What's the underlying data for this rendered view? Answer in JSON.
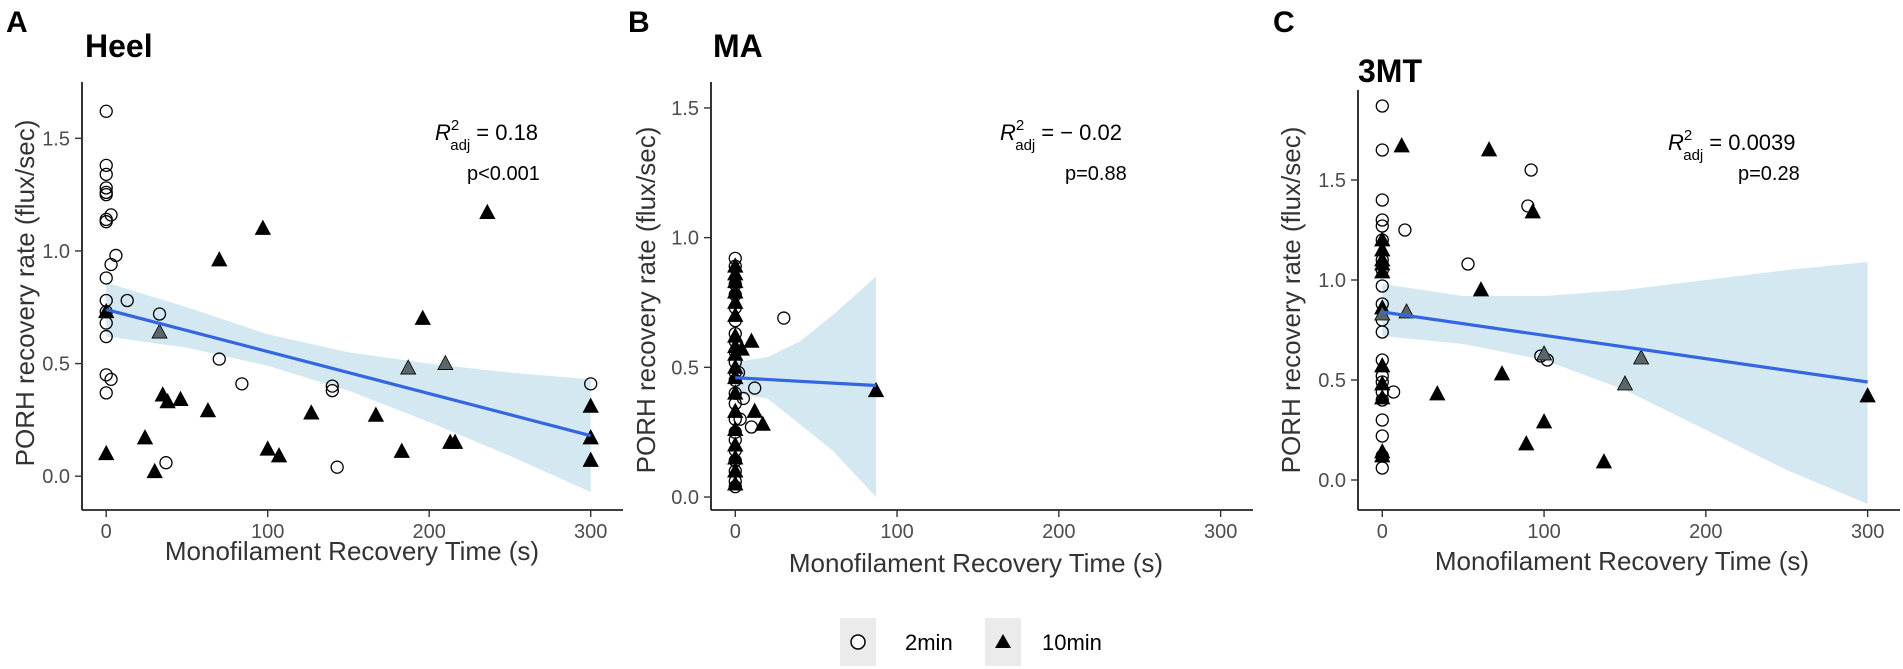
{
  "legend": {
    "items": [
      {
        "label": "2min",
        "marker": "circle"
      },
      {
        "label": "10min",
        "marker": "triangle"
      }
    ]
  },
  "colors": {
    "fit_line": "#3366e0",
    "ci_band": "#cfe6f0",
    "marker_edge": "#000000",
    "gray_triangle": "#5a6668",
    "legend_bg": "#ebebeb"
  },
  "chart_data": [
    {
      "panel": "A",
      "title": "Heel",
      "type": "scatter",
      "xlabel": "Monofilament Recovery Time (s)",
      "ylabel": "PORH recovery rate (flux/sec)",
      "xlim": [
        -15,
        320
      ],
      "ylim": [
        -0.15,
        1.75
      ],
      "xticks": [
        0,
        100,
        200,
        300
      ],
      "yticks": [
        0.0,
        0.5,
        1.0,
        1.5
      ],
      "ytick_labels": [
        "0.0",
        "0.5",
        "1.0",
        "1.5"
      ],
      "r2_prefix": "R",
      "r2_sup": "2",
      "r2_sub": "adj",
      "r2_value": "= 0.18",
      "p_text": "p<0.001",
      "fit": {
        "x0": 0,
        "y0": 0.74,
        "x1": 300,
        "y1": 0.18
      },
      "ci": {
        "x": [
          0,
          50,
          100,
          150,
          200,
          250,
          300
        ],
        "lower": [
          0.62,
          0.57,
          0.49,
          0.38,
          0.24,
          0.09,
          -0.07
        ],
        "upper": [
          0.86,
          0.75,
          0.63,
          0.55,
          0.5,
          0.46,
          0.43
        ]
      },
      "series": [
        {
          "name": "2min",
          "marker": "circle",
          "points": [
            [
              0,
              1.62
            ],
            [
              0,
              1.38
            ],
            [
              0,
              1.34
            ],
            [
              0,
              1.28
            ],
            [
              0,
              1.26
            ],
            [
              0,
              1.25
            ],
            [
              0,
              1.13
            ],
            [
              0,
              1.14
            ],
            [
              0,
              0.88
            ],
            [
              0,
              0.78
            ],
            [
              0,
              0.73
            ],
            [
              0,
              0.68
            ],
            [
              0,
              0.62
            ],
            [
              0,
              0.45
            ],
            [
              0,
              0.37
            ],
            [
              3,
              1.16
            ],
            [
              3,
              0.94
            ],
            [
              3,
              0.43
            ],
            [
              6,
              0.98
            ],
            [
              13,
              0.78
            ],
            [
              33,
              0.72
            ],
            [
              37,
              0.06
            ],
            [
              70,
              0.52
            ],
            [
              84,
              0.41
            ],
            [
              140,
              0.4
            ],
            [
              140,
              0.38
            ],
            [
              143,
              0.04
            ],
            [
              300,
              0.41
            ]
          ]
        },
        {
          "name": "10min",
          "marker": "triangle",
          "points": [
            [
              0,
              0.1
            ],
            [
              0,
              0.73
            ],
            [
              24,
              0.17
            ],
            [
              30,
              0.02
            ],
            [
              35,
              0.36
            ],
            [
              38,
              0.33
            ],
            [
              46,
              0.34
            ],
            [
              63,
              0.29
            ],
            [
              70,
              0.96
            ],
            [
              97,
              1.1
            ],
            [
              100,
              0.12
            ],
            [
              107,
              0.09
            ],
            [
              127,
              0.28
            ],
            [
              167,
              0.27
            ],
            [
              183,
              0.11
            ],
            [
              196,
              0.7
            ],
            [
              213,
              0.15
            ],
            [
              216,
              0.15
            ],
            [
              236,
              1.17
            ],
            [
              300,
              0.31
            ],
            [
              300,
              0.17
            ],
            [
              300,
              0.07
            ]
          ]
        },
        {
          "name": "10min-gray",
          "marker": "triangle-gray",
          "points": [
            [
              33,
              0.64
            ],
            [
              187,
              0.48
            ],
            [
              210,
              0.5
            ]
          ]
        }
      ]
    },
    {
      "panel": "B",
      "title": "MA",
      "type": "scatter",
      "xlabel": "Monofilament Recovery Time (s)",
      "ylabel": "PORH recovery rate (flux/sec)",
      "xlim": [
        -15,
        320
      ],
      "ylim": [
        -0.05,
        1.6
      ],
      "xticks": [
        0,
        100,
        200,
        300
      ],
      "yticks": [
        0.0,
        0.5,
        1.0,
        1.5
      ],
      "ytick_labels": [
        "0.0",
        "0.5",
        "1.0",
        "1.5"
      ],
      "r2_prefix": "R",
      "r2_sup": "2",
      "r2_sub": "adj",
      "r2_value": "= − 0.02",
      "p_text": "p=0.88",
      "fit": {
        "x0": 0,
        "y0": 0.46,
        "x1": 87,
        "y1": 0.43
      },
      "ci": {
        "x": [
          0,
          20,
          40,
          60,
          87
        ],
        "lower": [
          0.4,
          0.38,
          0.28,
          0.18,
          0.0
        ],
        "upper": [
          0.52,
          0.54,
          0.6,
          0.7,
          0.85
        ]
      },
      "series": [
        {
          "name": "2min",
          "marker": "circle",
          "points": [
            [
              0,
              0.92
            ],
            [
              0,
              0.89
            ],
            [
              0,
              0.82
            ],
            [
              0,
              0.78
            ],
            [
              0,
              0.73
            ],
            [
              0,
              0.68
            ],
            [
              0,
              0.63
            ],
            [
              0,
              0.6
            ],
            [
              0,
              0.56
            ],
            [
              0,
              0.52
            ],
            [
              0,
              0.48
            ],
            [
              0,
              0.45
            ],
            [
              0,
              0.4
            ],
            [
              0,
              0.36
            ],
            [
              0,
              0.3
            ],
            [
              0,
              0.25
            ],
            [
              0,
              0.22
            ],
            [
              0,
              0.18
            ],
            [
              0,
              0.14
            ],
            [
              0,
              0.1
            ],
            [
              0,
              0.06
            ],
            [
              0,
              0.04
            ],
            [
              2,
              0.48
            ],
            [
              3,
              0.3
            ],
            [
              5,
              0.38
            ],
            [
              10,
              0.27
            ],
            [
              12,
              0.42
            ],
            [
              30,
              0.69
            ]
          ]
        },
        {
          "name": "10min",
          "marker": "triangle",
          "points": [
            [
              0,
              0.89
            ],
            [
              0,
              0.86
            ],
            [
              0,
              0.83
            ],
            [
              0,
              0.79
            ],
            [
              0,
              0.75
            ],
            [
              0,
              0.7
            ],
            [
              0,
              0.62
            ],
            [
              0,
              0.58
            ],
            [
              0,
              0.55
            ],
            [
              0,
              0.5
            ],
            [
              0,
              0.46
            ],
            [
              0,
              0.4
            ],
            [
              0,
              0.33
            ],
            [
              0,
              0.26
            ],
            [
              0,
              0.2
            ],
            [
              0,
              0.15
            ],
            [
              0,
              0.1
            ],
            [
              0,
              0.05
            ],
            [
              4,
              0.57
            ],
            [
              10,
              0.6
            ],
            [
              12,
              0.33
            ],
            [
              17,
              0.28
            ],
            [
              87,
              0.41
            ]
          ]
        },
        {
          "name": "10min-gray",
          "marker": "triangle-gray",
          "points": []
        }
      ]
    },
    {
      "panel": "C",
      "title": "3MT",
      "type": "scatter",
      "xlabel": "Monofilament Recovery Time (s)",
      "ylabel": "PORH recovery rate (flux/sec)",
      "xlim": [
        -15,
        320
      ],
      "ylim": [
        -0.15,
        1.95
      ],
      "xticks": [
        0,
        100,
        200,
        300
      ],
      "yticks": [
        0.0,
        0.5,
        1.0,
        1.5
      ],
      "ytick_labels": [
        "0.0",
        "0.5",
        "1.0",
        "1.5"
      ],
      "r2_prefix": "R",
      "r2_sup": "2",
      "r2_sub": "adj",
      "r2_value": "= 0.0039",
      "p_text": "p=0.28",
      "fit": {
        "x0": 0,
        "y0": 0.84,
        "x1": 300,
        "y1": 0.49
      },
      "ci": {
        "x": [
          0,
          50,
          100,
          150,
          200,
          250,
          300
        ],
        "lower": [
          0.72,
          0.68,
          0.6,
          0.45,
          0.25,
          0.05,
          -0.12
        ],
        "upper": [
          0.98,
          0.92,
          0.92,
          0.95,
          1.0,
          1.05,
          1.09
        ]
      },
      "series": [
        {
          "name": "2min",
          "marker": "circle",
          "points": [
            [
              0,
              1.87
            ],
            [
              0,
              1.65
            ],
            [
              0,
              1.4
            ],
            [
              0,
              1.3
            ],
            [
              0,
              1.27
            ],
            [
              0,
              1.2
            ],
            [
              0,
              1.1
            ],
            [
              0,
              1.05
            ],
            [
              0,
              0.97
            ],
            [
              0,
              0.88
            ],
            [
              0,
              0.8
            ],
            [
              0,
              0.74
            ],
            [
              0,
              0.6
            ],
            [
              0,
              0.52
            ],
            [
              0,
              0.49
            ],
            [
              0,
              0.44
            ],
            [
              0,
              0.4
            ],
            [
              0,
              0.3
            ],
            [
              0,
              0.22
            ],
            [
              0,
              0.12
            ],
            [
              0,
              0.06
            ],
            [
              7,
              0.44
            ],
            [
              14,
              1.25
            ],
            [
              53,
              1.08
            ],
            [
              90,
              1.37
            ],
            [
              92,
              1.55
            ],
            [
              98,
              0.62
            ],
            [
              102,
              0.6
            ]
          ]
        },
        {
          "name": "10min",
          "marker": "triangle",
          "points": [
            [
              0,
              1.2
            ],
            [
              0,
              1.15
            ],
            [
              0,
              1.1
            ],
            [
              0,
              1.08
            ],
            [
              0,
              1.04
            ],
            [
              0,
              0.86
            ],
            [
              0,
              0.57
            ],
            [
              0,
              0.48
            ],
            [
              0,
              0.41
            ],
            [
              0,
              0.14
            ],
            [
              0,
              0.12
            ],
            [
              12,
              1.67
            ],
            [
              34,
              0.43
            ],
            [
              61,
              0.95
            ],
            [
              66,
              1.65
            ],
            [
              74,
              0.53
            ],
            [
              89,
              0.18
            ],
            [
              93,
              1.34
            ],
            [
              100,
              0.29
            ],
            [
              137,
              0.09
            ],
            [
              300,
              0.42
            ]
          ]
        },
        {
          "name": "10min-gray",
          "marker": "triangle-gray",
          "points": [
            [
              0,
              0.83
            ],
            [
              15,
              0.84
            ],
            [
              100,
              0.63
            ],
            [
              150,
              0.48
            ],
            [
              160,
              0.61
            ]
          ]
        }
      ]
    }
  ]
}
